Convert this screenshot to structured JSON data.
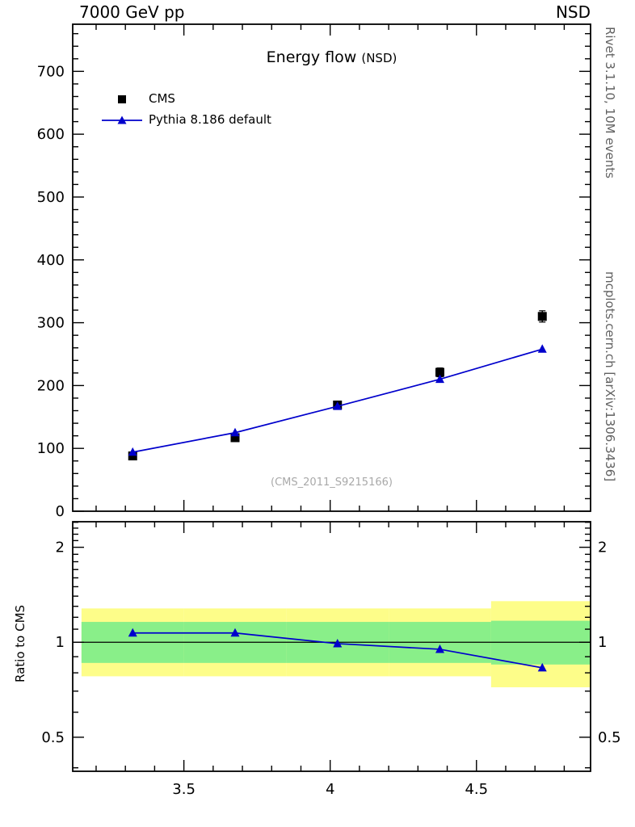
{
  "header": {
    "left": "7000 GeV pp",
    "right": "NSD"
  },
  "side_texts": {
    "rivet": "Rivet 3.1.10, 10M events",
    "mcplots": "mcplots.cern.ch [arXiv:1306.3436]"
  },
  "main_panel": {
    "title": "Energy flow",
    "title_suffix": "(NSD)",
    "watermark": "(CMS_2011_S9215166)",
    "legend": [
      {
        "label": "CMS",
        "marker": "black-square"
      },
      {
        "label": "Pythia 8.186 default",
        "marker": "blue-line-triangle"
      }
    ]
  },
  "ratio_panel": {
    "ylabel": "Ratio to CMS"
  },
  "chart_data": [
    {
      "type": "line",
      "panel": "main",
      "title": "Energy flow (NSD)",
      "xlim": [
        3.12,
        4.89
      ],
      "ylim": [
        0,
        775
      ],
      "xticks": {
        "major": [
          3.5,
          4,
          4.5
        ],
        "labels": [
          "3.5",
          "4",
          "4.5"
        ],
        "minor_step": 0.1
      },
      "yticks": {
        "major": [
          0,
          100,
          200,
          300,
          400,
          500,
          600,
          700
        ],
        "labels": [
          "0",
          "100",
          "200",
          "300",
          "400",
          "500",
          "600",
          "700"
        ],
        "minor_step": 20
      },
      "series": [
        {
          "name": "CMS",
          "type": "scatter",
          "marker": "square",
          "color": "#000000",
          "x": [
            3.325,
            3.675,
            4.025,
            4.375,
            4.725
          ],
          "y": [
            88,
            117,
            169,
            221,
            310
          ],
          "yerr": [
            5,
            5,
            6,
            7,
            9
          ]
        },
        {
          "name": "Pythia 8.186 default",
          "type": "line+scatter",
          "marker": "triangle",
          "color": "#0000cc",
          "x": [
            3.325,
            3.675,
            4.025,
            4.375,
            4.725
          ],
          "y": [
            94,
            125,
            167,
            210,
            258
          ]
        }
      ]
    },
    {
      "type": "ratio",
      "panel": "ratio",
      "ylabel": "Ratio to CMS",
      "yscale": "log",
      "xlim": [
        3.12,
        4.89
      ],
      "ylim": [
        0.39,
        2.41
      ],
      "xticks": {
        "major": [
          3.5,
          4,
          4.5
        ],
        "labels": [
          "3.5",
          "4",
          "4.5"
        ],
        "minor_step": 0.1
      },
      "yticks": {
        "major": [
          0.5,
          1,
          2
        ],
        "labels": [
          "0.5",
          "1",
          "2"
        ],
        "minor": [
          0.4,
          0.6,
          0.7,
          0.8,
          0.9,
          1.1,
          1.2,
          1.3,
          1.4,
          1.5,
          1.6,
          1.7,
          1.8,
          1.9,
          2.1,
          2.2,
          2.3,
          2.4
        ]
      },
      "reference_line": 1,
      "bands": {
        "bin_edges": [
          3.15,
          3.5,
          3.85,
          4.2,
          4.55,
          4.9
        ],
        "yellow": {
          "color": "#fdfd89",
          "lo": [
            0.78,
            0.78,
            0.78,
            0.78,
            0.72
          ],
          "hi": [
            1.28,
            1.28,
            1.28,
            1.28,
            1.35
          ]
        },
        "green": {
          "color": "#89ef89",
          "lo": [
            0.86,
            0.86,
            0.86,
            0.86,
            0.85
          ],
          "hi": [
            1.16,
            1.16,
            1.16,
            1.16,
            1.17
          ]
        }
      },
      "series": [
        {
          "name": "Pythia 8.186 default / CMS",
          "type": "line+scatter",
          "marker": "triangle",
          "color": "#0000cc",
          "x": [
            3.325,
            3.675,
            4.025,
            4.375,
            4.725
          ],
          "y": [
            1.07,
            1.07,
            0.99,
            0.95,
            0.83
          ]
        }
      ]
    }
  ]
}
